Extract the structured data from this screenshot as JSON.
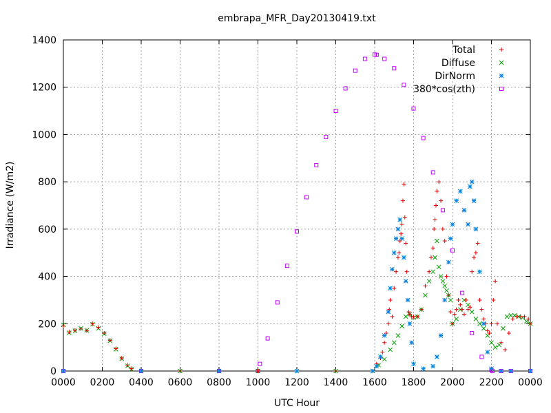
{
  "chart_data": {
    "type": "scatter",
    "title": "embrapa_MFR_Day20130419.txt",
    "xlabel": "UTC Hour",
    "ylabel": "Irradiance (W/m2)",
    "xlim": [
      0,
      24
    ],
    "ylim": [
      0,
      1400
    ],
    "x_ticks": [
      0,
      2,
      4,
      6,
      8,
      10,
      12,
      14,
      16,
      18,
      20,
      22,
      24
    ],
    "x_tick_labels": [
      "0000",
      "0200",
      "0400",
      "0600",
      "0800",
      "1000",
      "1200",
      "1400",
      "1600",
      "1800",
      "2000",
      "2200",
      "0000"
    ],
    "y_ticks": [
      0,
      200,
      400,
      600,
      800,
      1000,
      1200,
      1400
    ],
    "y_tick_labels": [
      "0",
      "200",
      "400",
      "600",
      "800",
      "1000",
      "1200",
      "1400"
    ],
    "grid": true,
    "legend_position": "top-right",
    "series": [
      {
        "name": "Total",
        "marker": "+",
        "color": "#e00000",
        "x": [
          0.0,
          0.3,
          0.6,
          0.9,
          1.2,
          1.5,
          1.8,
          2.1,
          2.4,
          2.7,
          3.0,
          3.3,
          3.5,
          4.0,
          6.0,
          8.0,
          10.0,
          12.0,
          14.0,
          15.9,
          16.1,
          16.3,
          16.4,
          16.5,
          16.6,
          16.7,
          16.75,
          16.8,
          16.9,
          17.0,
          17.1,
          17.2,
          17.25,
          17.3,
          17.35,
          17.4,
          17.45,
          17.5,
          17.55,
          17.6,
          17.65,
          17.7,
          17.75,
          17.8,
          17.9,
          18.0,
          18.2,
          18.4,
          18.6,
          18.8,
          18.9,
          19.0,
          19.05,
          19.1,
          19.15,
          19.2,
          19.3,
          19.4,
          19.5,
          19.6,
          19.7,
          19.8,
          19.9,
          20.0,
          20.1,
          20.2,
          20.3,
          20.4,
          20.5,
          20.6,
          20.7,
          20.8,
          20.9,
          21.0,
          21.1,
          21.2,
          21.3,
          21.4,
          21.5,
          21.6,
          21.7,
          21.8,
          21.9,
          22.0,
          22.1,
          22.2,
          22.3,
          22.5,
          22.7,
          22.9,
          23.1,
          23.3,
          23.5,
          23.7,
          23.9,
          24.0
        ],
        "y": [
          190,
          165,
          172,
          178,
          170,
          200,
          185,
          160,
          130,
          95,
          55,
          25,
          10,
          0,
          0,
          0,
          0,
          0,
          0,
          0,
          30,
          55,
          80,
          120,
          160,
          200,
          260,
          300,
          230,
          350,
          420,
          480,
          500,
          550,
          580,
          620,
          720,
          790,
          650,
          540,
          420,
          300,
          250,
          240,
          230,
          230,
          230,
          260,
          360,
          420,
          480,
          520,
          600,
          640,
          700,
          760,
          800,
          720,
          600,
          550,
          400,
          320,
          250,
          200,
          240,
          260,
          300,
          280,
          260,
          240,
          300,
          260,
          270,
          420,
          480,
          500,
          540,
          300,
          260,
          220,
          200,
          170,
          160,
          200,
          300,
          380,
          200,
          120,
          90,
          160,
          220,
          230,
          230,
          230,
          220,
          200
        ]
      },
      {
        "name": "Diffuse",
        "marker": "x",
        "color": "#00a000",
        "x": [
          0.0,
          0.3,
          0.6,
          0.9,
          1.2,
          1.5,
          1.8,
          2.1,
          2.4,
          2.7,
          3.0,
          3.3,
          3.5,
          4.0,
          6.0,
          8.0,
          10.0,
          12.0,
          14.0,
          15.9,
          16.2,
          16.5,
          16.8,
          17.0,
          17.2,
          17.4,
          17.6,
          17.8,
          18.0,
          18.2,
          18.4,
          18.6,
          18.8,
          19.0,
          19.1,
          19.2,
          19.3,
          19.4,
          19.5,
          19.6,
          19.7,
          19.8,
          19.9,
          20.0,
          20.2,
          20.4,
          20.6,
          20.8,
          21.0,
          21.2,
          21.4,
          21.6,
          21.8,
          22.0,
          22.2,
          22.4,
          22.6,
          22.8,
          23.0,
          23.2,
          23.4,
          23.6,
          23.8,
          24.0
        ],
        "y": [
          195,
          162,
          170,
          180,
          172,
          198,
          180,
          158,
          128,
          92,
          52,
          22,
          8,
          0,
          0,
          0,
          0,
          0,
          0,
          0,
          25,
          50,
          90,
          120,
          150,
          190,
          230,
          240,
          225,
          230,
          260,
          320,
          380,
          420,
          480,
          550,
          440,
          400,
          380,
          360,
          340,
          320,
          300,
          200,
          220,
          260,
          300,
          280,
          250,
          220,
          200,
          180,
          150,
          120,
          100,
          110,
          180,
          230,
          235,
          235,
          230,
          225,
          210,
          200
        ]
      },
      {
        "name": "DirNorm",
        "marker": "*",
        "color": "#0080e0",
        "x": [
          0.0,
          4.0,
          8.0,
          12.0,
          15.9,
          16.1,
          16.3,
          16.5,
          16.7,
          16.8,
          16.9,
          17.0,
          17.1,
          17.2,
          17.3,
          17.4,
          17.5,
          17.6,
          17.7,
          17.8,
          17.9,
          18.0,
          18.5,
          19.0,
          19.2,
          19.4,
          19.6,
          19.8,
          19.9,
          20.0,
          20.2,
          20.4,
          20.6,
          20.8,
          20.9,
          21.0,
          21.1,
          21.2,
          21.4,
          21.6,
          21.8,
          22.0,
          22.5,
          23.0,
          24.0
        ],
        "y": [
          0,
          0,
          0,
          0,
          0,
          20,
          60,
          150,
          250,
          350,
          430,
          500,
          560,
          600,
          640,
          560,
          480,
          380,
          300,
          200,
          120,
          30,
          10,
          20,
          60,
          150,
          300,
          460,
          560,
          620,
          720,
          760,
          680,
          620,
          780,
          800,
          720,
          600,
          420,
          200,
          80,
          10,
          0,
          0,
          0
        ]
      },
      {
        "name": "380*cos(zth)",
        "marker": "square",
        "color": "#c000ff",
        "x": [
          0.0,
          4.0,
          8.0,
          10.0,
          10.1,
          10.5,
          11.0,
          11.5,
          12.0,
          12.5,
          13.0,
          13.5,
          14.0,
          14.5,
          15.0,
          15.5,
          16.0,
          16.1,
          16.5,
          17.0,
          17.5,
          18.0,
          18.5,
          19.0,
          19.5,
          20.0,
          20.5,
          21.0,
          21.5,
          22.0,
          22.05,
          22.5,
          23.0,
          24.0
        ],
        "y": [
          0,
          0,
          0,
          0,
          30,
          138,
          290,
          445,
          590,
          735,
          870,
          990,
          1100,
          1195,
          1270,
          1320,
          1338,
          1337,
          1320,
          1280,
          1210,
          1110,
          985,
          840,
          680,
          510,
          330,
          160,
          60,
          5,
          0,
          0,
          0,
          0
        ]
      }
    ]
  }
}
